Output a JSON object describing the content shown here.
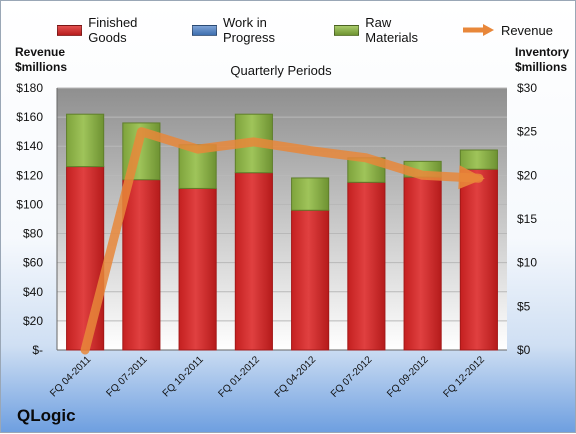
{
  "chart_data": {
    "type": "bar",
    "stacked": true,
    "subtitle": "Quarterly Periods",
    "y_left_label": [
      "Revenue",
      "$millions"
    ],
    "y_right_label": [
      "Inventory",
      "$millions"
    ],
    "categories": [
      "FQ 04-2011",
      "FQ 07-2011",
      "FQ 10-2011",
      "FQ 01-2012",
      "FQ 04-2012",
      "FQ 07-2012",
      "FQ 09-2012",
      "FQ 12-2012"
    ],
    "series": [
      {
        "name": "Finished Goods",
        "axis": "right",
        "color": "#d12b2b",
        "values": [
          21.0,
          19.5,
          18.5,
          20.3,
          16.0,
          19.2,
          19.8,
          20.7
        ]
      },
      {
        "name": "Work in Progress",
        "axis": "right",
        "color": "#4f81bd",
        "values": [
          0,
          0,
          0,
          0,
          0,
          0,
          0,
          0
        ]
      },
      {
        "name": "Raw Materials",
        "axis": "right",
        "color": "#8db34a",
        "values": [
          6.0,
          6.5,
          5.0,
          6.7,
          3.7,
          2.8,
          1.8,
          2.2
        ]
      },
      {
        "name": "Revenue",
        "axis": "left",
        "type": "line",
        "color": "#e8873a",
        "values": [
          0,
          150,
          138,
          143,
          137,
          132,
          120,
          118
        ]
      }
    ],
    "y_left": {
      "min": 0,
      "max": 180,
      "step": 20,
      "ticks": [
        "$-",
        "$20",
        "$40",
        "$60",
        "$80",
        "$100",
        "$120",
        "$140",
        "$160",
        "$180"
      ]
    },
    "y_right": {
      "min": 0,
      "max": 30,
      "step": 5,
      "ticks": [
        "$0",
        "$5",
        "$10",
        "$15",
        "$20",
        "$25",
        "$30"
      ]
    },
    "legend_position": "top"
  },
  "brand": "QLogic"
}
